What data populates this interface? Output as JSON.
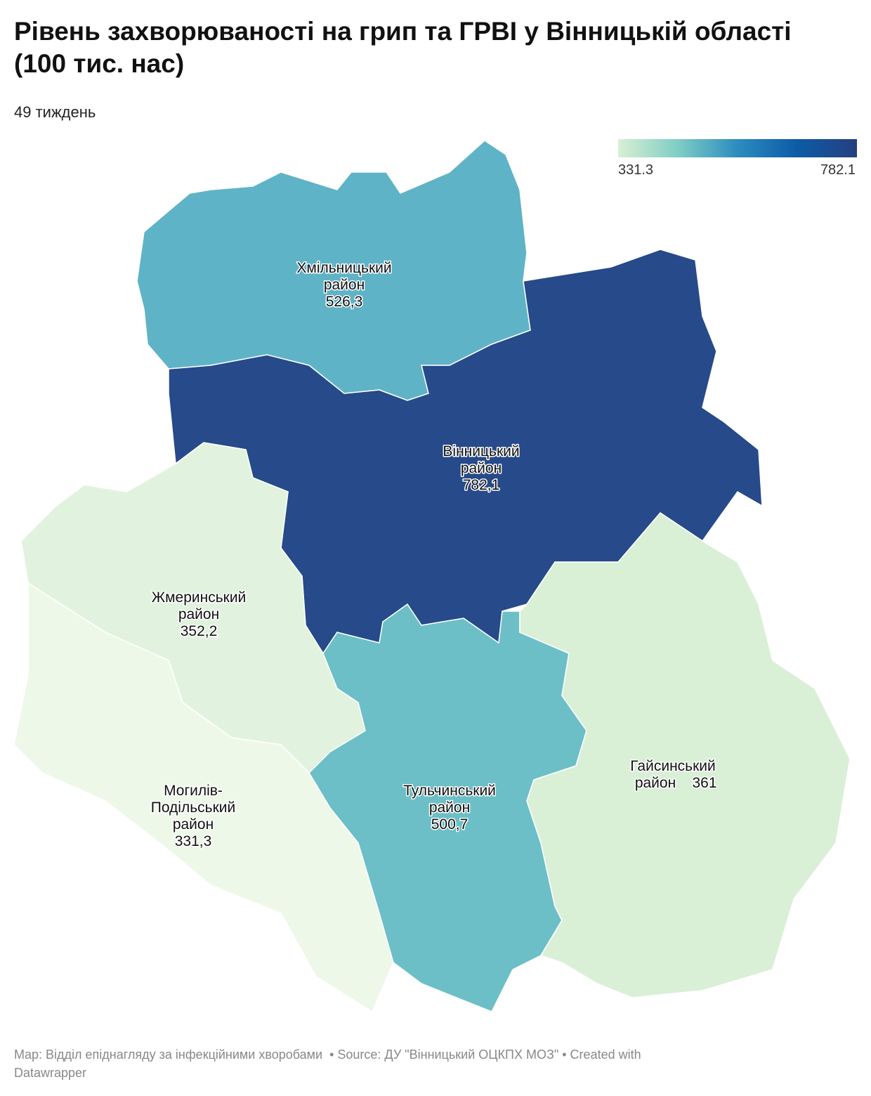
{
  "header": {
    "title": "Рівень захворюваності на грип та ГРВІ у Вінницькій області (100 тис. нас)",
    "subtitle": "49 тиждень"
  },
  "chart_data": {
    "type": "choropleth",
    "legend": {
      "min": 331.3,
      "max": 782.1,
      "colors": [
        "#d9f0d3",
        "#7fcdc4",
        "#2c8cc0",
        "#0d5ba6",
        "#263f80"
      ]
    },
    "regions": [
      {
        "name_lines": [
          "Хмільницький",
          "район"
        ],
        "value": 526.3,
        "value_label": "526,3",
        "color": "#5fb3c7"
      },
      {
        "name_lines": [
          "Вінницький",
          "район"
        ],
        "value": 782.1,
        "value_label": "782,1",
        "color": "#264a8a"
      },
      {
        "name_lines": [
          "Жмеринський",
          "район"
        ],
        "value": 352.2,
        "value_label": "352,2",
        "color": "#e1f3de"
      },
      {
        "name_lines": [
          "Могилів-",
          "Подільський",
          "район"
        ],
        "value": 331.3,
        "value_label": "331,3",
        "color": "#eef8e9"
      },
      {
        "name_lines": [
          "Тульчинський",
          "район"
        ],
        "value": 500.7,
        "value_label": "500,7",
        "color": "#6cbfc6"
      },
      {
        "name_lines": [
          "Гайсинський",
          "район"
        ],
        "value": 361,
        "color": "#d9f0d7"
      }
    ]
  },
  "footer": {
    "line1": "Map: Відділ епіднагляду за інфекційними хворобами  • Source: ДУ \"Вінницький ОЦКПХ МОЗ\" • Created with",
    "line2": "Datawrapper"
  }
}
